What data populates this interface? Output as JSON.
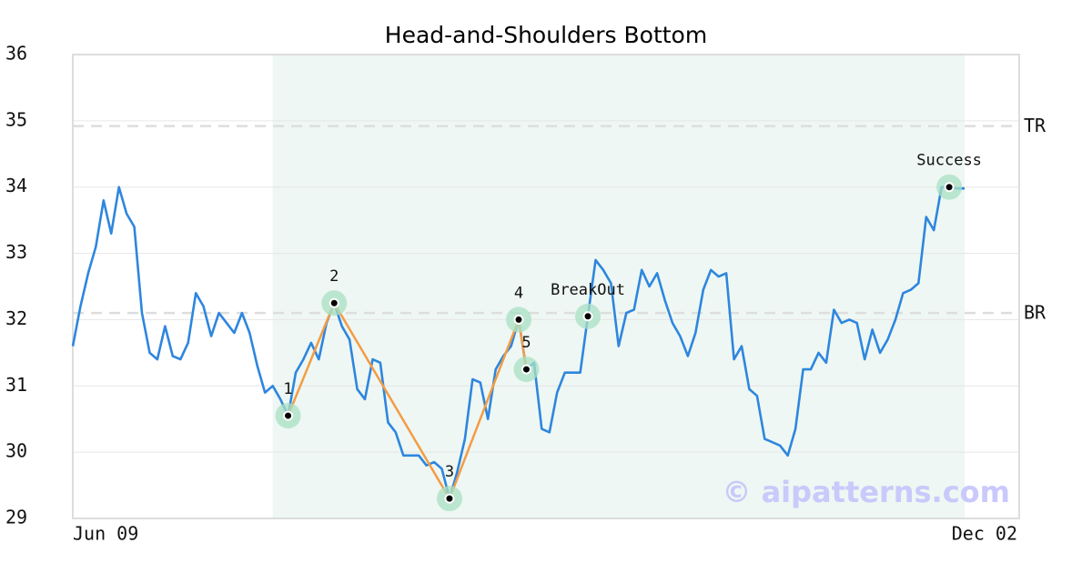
{
  "chart_data": {
    "type": "line",
    "title": "Head-and-Shoulders Bottom",
    "categories": [
      "Jun 09",
      null,
      null,
      null,
      null,
      null,
      null,
      null,
      null,
      null,
      null,
      null,
      null,
      null,
      null,
      null,
      null,
      null,
      null,
      null,
      null,
      null,
      null,
      null,
      null,
      null,
      null,
      null,
      null,
      null,
      null,
      null,
      null,
      null,
      null,
      null,
      null,
      null,
      null,
      null,
      null,
      null,
      null,
      null,
      null,
      null,
      null,
      null,
      null,
      null,
      null,
      null,
      null,
      null,
      null,
      null,
      null,
      null,
      null,
      null,
      null,
      null,
      null,
      null,
      null,
      null,
      null,
      null,
      null,
      null,
      null,
      null,
      null,
      null,
      null,
      null,
      null,
      null,
      null,
      null,
      null,
      null,
      null,
      null,
      null,
      null,
      null,
      null,
      null,
      null,
      null,
      null,
      null,
      null,
      null,
      null,
      null,
      null,
      null,
      null,
      null,
      null,
      null,
      null,
      null,
      null,
      null,
      null,
      null,
      null,
      null,
      null,
      null,
      null,
      null,
      null,
      "Dec 02"
    ],
    "series": [
      {
        "color": "#2e86de",
        "values": [
          31.6,
          32.2,
          32.7,
          33.1,
          33.8,
          33.3,
          34.0,
          33.6,
          33.4,
          32.1,
          31.5,
          31.4,
          31.9,
          31.45,
          31.4,
          31.65,
          32.4,
          32.2,
          31.75,
          32.1,
          31.95,
          31.8,
          32.1,
          31.8,
          31.3,
          30.9,
          31.0,
          30.8,
          30.55,
          31.2,
          31.4,
          31.65,
          31.4,
          31.95,
          32.25,
          31.9,
          31.7,
          30.95,
          30.8,
          31.4,
          31.35,
          30.45,
          30.3,
          29.95,
          29.95,
          29.95,
          29.8,
          29.85,
          29.75,
          29.3,
          29.7,
          30.2,
          31.1,
          31.05,
          30.5,
          31.25,
          31.45,
          31.6,
          32.0,
          31.25,
          31.35,
          30.35,
          30.3,
          30.9,
          31.2,
          31.2,
          31.2,
          32.05,
          32.9,
          32.75,
          32.55,
          31.6,
          32.1,
          32.15,
          32.75,
          32.5,
          32.7,
          32.3,
          31.95,
          31.75,
          31.45,
          31.8,
          32.45,
          32.75,
          32.65,
          32.7,
          31.4,
          31.6,
          30.95,
          30.85,
          30.2,
          30.15,
          30.1,
          29.95,
          30.35,
          31.25,
          31.25,
          31.5,
          31.35,
          32.15,
          31.95,
          32.0,
          31.95,
          31.4,
          31.85,
          31.5,
          31.7,
          32.0,
          32.4,
          32.45,
          32.55,
          33.55,
          33.35,
          34.0,
          34.0,
          33.98,
          33.98
        ]
      }
    ],
    "ylim": [
      29,
      36
    ],
    "yticks": [
      29,
      30,
      31,
      32,
      33,
      34,
      35,
      36
    ],
    "grid": true,
    "highlight": {
      "x": [
        26,
        116
      ],
      "color": "#eef7f3"
    },
    "reference_lines": [
      {
        "label": "TR",
        "value": 34.92
      },
      {
        "label": "BR",
        "value": 32.1
      }
    ],
    "pattern_color": "#f39c45",
    "annotations": [
      {
        "label": "1",
        "x": 28,
        "y": 30.55
      },
      {
        "label": "2",
        "x": 34,
        "y": 32.25
      },
      {
        "label": "3",
        "x": 49,
        "y": 29.3
      },
      {
        "label": "4",
        "x": 58,
        "y": 32.0
      },
      {
        "label": "5",
        "x": 59,
        "y": 31.25
      },
      {
        "label": "BreakOut",
        "x": 67,
        "y": 32.05
      },
      {
        "label": "Success",
        "x": 114,
        "y": 34.0
      }
    ],
    "watermark": "© aipatterns.com"
  }
}
